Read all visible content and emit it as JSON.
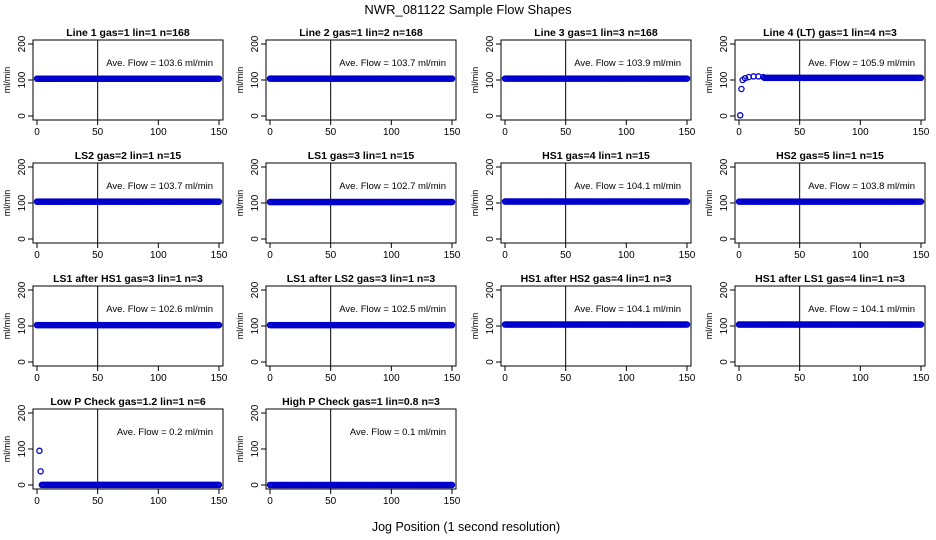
{
  "chart_data": {
    "type": "scatter",
    "title": "NWR_081122  Sample Flow Shapes",
    "xlabel": "Jog Position (1 second resolution)",
    "ylabel": "ml/min",
    "xlim": [
      0,
      150
    ],
    "ylim": [
      0,
      200
    ],
    "x_ticks": [
      0,
      50,
      100,
      150
    ],
    "y_ticks": [
      0,
      100,
      200
    ],
    "vertical_reference_line_x": 50,
    "marker_color": "#0000cc",
    "annotation_prefix": "Ave. Flow =",
    "annotation_unit": "ml/min",
    "panels": [
      {
        "title": "Line 1 gas=1 lin=1 n=168",
        "ave_flow": "103.6",
        "level": 103.6
      },
      {
        "title": "Line 2 gas=1 lin=2 n=168",
        "ave_flow": "103.7",
        "level": 103.7
      },
      {
        "title": "Line 3 gas=1 lin=3 n=168",
        "ave_flow": "103.9",
        "level": 103.9
      },
      {
        "title": "Line 4 (LT) gas=1 lin=4 n=3",
        "ave_flow": "105.9",
        "level": 105.9,
        "early_points": [
          [
            1,
            2
          ],
          [
            2,
            75
          ],
          [
            3,
            100
          ],
          [
            5,
            105
          ],
          [
            8,
            108
          ],
          [
            12,
            110
          ],
          [
            16,
            110
          ],
          [
            20,
            108
          ]
        ]
      },
      {
        "title": "LS2 gas=2 lin=1 n=15",
        "ave_flow": "103.7",
        "level": 103.7
      },
      {
        "title": "LS1 gas=3 lin=1 n=15",
        "ave_flow": "102.7",
        "level": 102.7
      },
      {
        "title": "HS1 gas=4 lin=1 n=15",
        "ave_flow": "104.1",
        "level": 104.1
      },
      {
        "title": "HS2 gas=5 lin=1 n=15",
        "ave_flow": "103.8",
        "level": 103.8
      },
      {
        "title": "LS1 after HS1 gas=3 lin=1 n=3",
        "ave_flow": "102.6",
        "level": 102.6
      },
      {
        "title": "LS1 after LS2 gas=3 lin=1 n=3",
        "ave_flow": "102.5",
        "level": 102.5
      },
      {
        "title": "HS1 after HS2 gas=4 lin=1 n=3",
        "ave_flow": "104.1",
        "level": 104.1
      },
      {
        "title": "HS1 after LS1 gas=4 lin=1 n=3",
        "ave_flow": "104.1",
        "level": 104.1
      },
      {
        "title": "Low P Check gas=1.2 lin=1 n=6",
        "ave_flow": "0.2",
        "level": 0.2,
        "early_points": [
          [
            2,
            95
          ],
          [
            3,
            38
          ]
        ]
      },
      {
        "title": "High P Check gas=1 lin=0.8 n=3",
        "ave_flow": "0.1",
        "level": 0.1
      }
    ]
  }
}
